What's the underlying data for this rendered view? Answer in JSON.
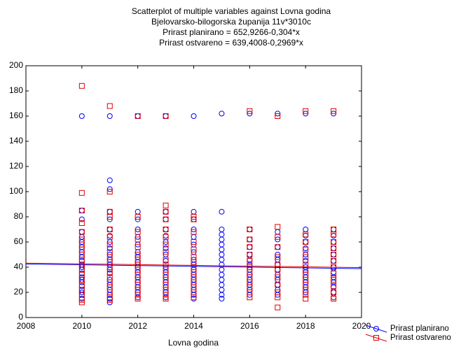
{
  "chart_data": {
    "type": "scatter",
    "title": "Scatterplot of multiple variables against Lovna godina",
    "subtitle": "Bjelovarsko-bilogorska županija 11v*3010c",
    "fits": [
      {
        "label": "Prirast planirano = 652,9266-0,304*x",
        "intercept": 652.9266,
        "slope": -0.304,
        "color": "#0000ff"
      },
      {
        "label": "Prirast ostvareno = 639,4008-0,2969*x",
        "intercept": 639.4008,
        "slope": -0.2969,
        "color": "#e00000"
      }
    ],
    "x_label": "Lovna godina",
    "xlim": [
      2008,
      2020
    ],
    "xticks": [
      2008,
      2010,
      2012,
      2014,
      2016,
      2018,
      2020
    ],
    "ylim": [
      0,
      200
    ],
    "yticks": [
      0,
      20,
      40,
      60,
      80,
      100,
      120,
      140,
      160,
      180,
      200
    ],
    "legend": "right-bottom",
    "series": [
      {
        "name": "Prirast planirano",
        "color": "#0000ff",
        "marker": "circle",
        "groups": [
          {
            "x": 2010,
            "values": [
              160,
              85,
              78,
              68,
              64,
              60,
              56,
              52,
              48,
              45,
              42,
              40,
              38,
              35,
              32,
              30,
              28,
              25,
              22,
              20,
              18,
              15
            ]
          },
          {
            "x": 2011,
            "values": [
              160,
              109,
              102,
              84,
              78,
              70,
              65,
              60,
              55,
              50,
              46,
              42,
              38,
              35,
              30,
              26,
              22,
              18,
              15,
              12
            ]
          },
          {
            "x": 2012,
            "values": [
              160,
              84,
              78,
              70,
              64,
              58,
              52,
              48,
              44,
              40,
              36,
              32,
              28,
              24,
              20,
              16
            ]
          },
          {
            "x": 2013,
            "values": [
              160,
              84,
              78,
              70,
              65,
              60,
              55,
              50,
              45,
              40,
              36,
              32,
              28,
              24,
              20,
              16
            ]
          },
          {
            "x": 2014,
            "values": [
              160,
              84,
              78,
              70,
              64,
              58,
              52,
              46,
              42,
              38,
              34,
              30,
              26,
              22,
              18,
              15
            ]
          },
          {
            "x": 2015,
            "values": [
              162,
              84,
              70,
              66,
              62,
              58,
              54,
              50,
              46,
              42,
              38,
              34,
              30,
              26,
              22,
              18,
              15
            ]
          },
          {
            "x": 2016,
            "values": [
              162,
              70,
              62,
              56,
              50,
              46,
              42,
              38,
              34,
              30,
              26,
              22,
              18
            ]
          },
          {
            "x": 2017,
            "values": [
              162,
              68,
              62,
              56,
              50,
              46,
              42,
              38,
              34,
              30,
              26,
              22,
              18
            ]
          },
          {
            "x": 2018,
            "values": [
              162,
              70,
              65,
              60,
              55,
              50,
              45,
              40,
              36,
              32,
              28,
              24,
              20
            ]
          },
          {
            "x": 2019,
            "values": [
              162,
              70,
              65,
              60,
              55,
              50,
              45,
              40,
              36,
              32,
              28,
              24,
              20,
              16
            ]
          }
        ]
      },
      {
        "name": "Prirast ostvareno",
        "color": "#e00000",
        "marker": "square",
        "groups": [
          {
            "x": 2010,
            "values": [
              184,
              99,
              85,
              75,
              68,
              62,
              58,
              54,
              50,
              46,
              42,
              38,
              34,
              30,
              26,
              22,
              18,
              14,
              12
            ]
          },
          {
            "x": 2011,
            "values": [
              168,
              100,
              84,
              80,
              70,
              64,
              58,
              52,
              48,
              44,
              40,
              36,
              32,
              28,
              24,
              20,
              16,
              14
            ]
          },
          {
            "x": 2012,
            "values": [
              160,
              80,
              68,
              62,
              56,
              50,
              46,
              42,
              38,
              34,
              30,
              26,
              22,
              18,
              15
            ]
          },
          {
            "x": 2013,
            "values": [
              160,
              89,
              84,
              78,
              70,
              64,
              58,
              52,
              46,
              42,
              38,
              34,
              30,
              26,
              22,
              18,
              15
            ]
          },
          {
            "x": 2014,
            "values": [
              80,
              78,
              68,
              60,
              54,
              48,
              44,
              40,
              36,
              32,
              28,
              24,
              20,
              16
            ]
          },
          {
            "x": 2016,
            "values": [
              164,
              70,
              62,
              56,
              50,
              45,
              40,
              36,
              32,
              28,
              24,
              20,
              16
            ]
          },
          {
            "x": 2017,
            "values": [
              160,
              72,
              64,
              56,
              48,
              42,
              38,
              32,
              26,
              20,
              16,
              8
            ]
          },
          {
            "x": 2018,
            "values": [
              164,
              66,
              60,
              54,
              48,
              42,
              38,
              34,
              30,
              26,
              22,
              18,
              15
            ]
          },
          {
            "x": 2019,
            "values": [
              164,
              70,
              66,
              60,
              55,
              50,
              45,
              40,
              35,
              30,
              25,
              20,
              15
            ]
          }
        ]
      }
    ]
  }
}
